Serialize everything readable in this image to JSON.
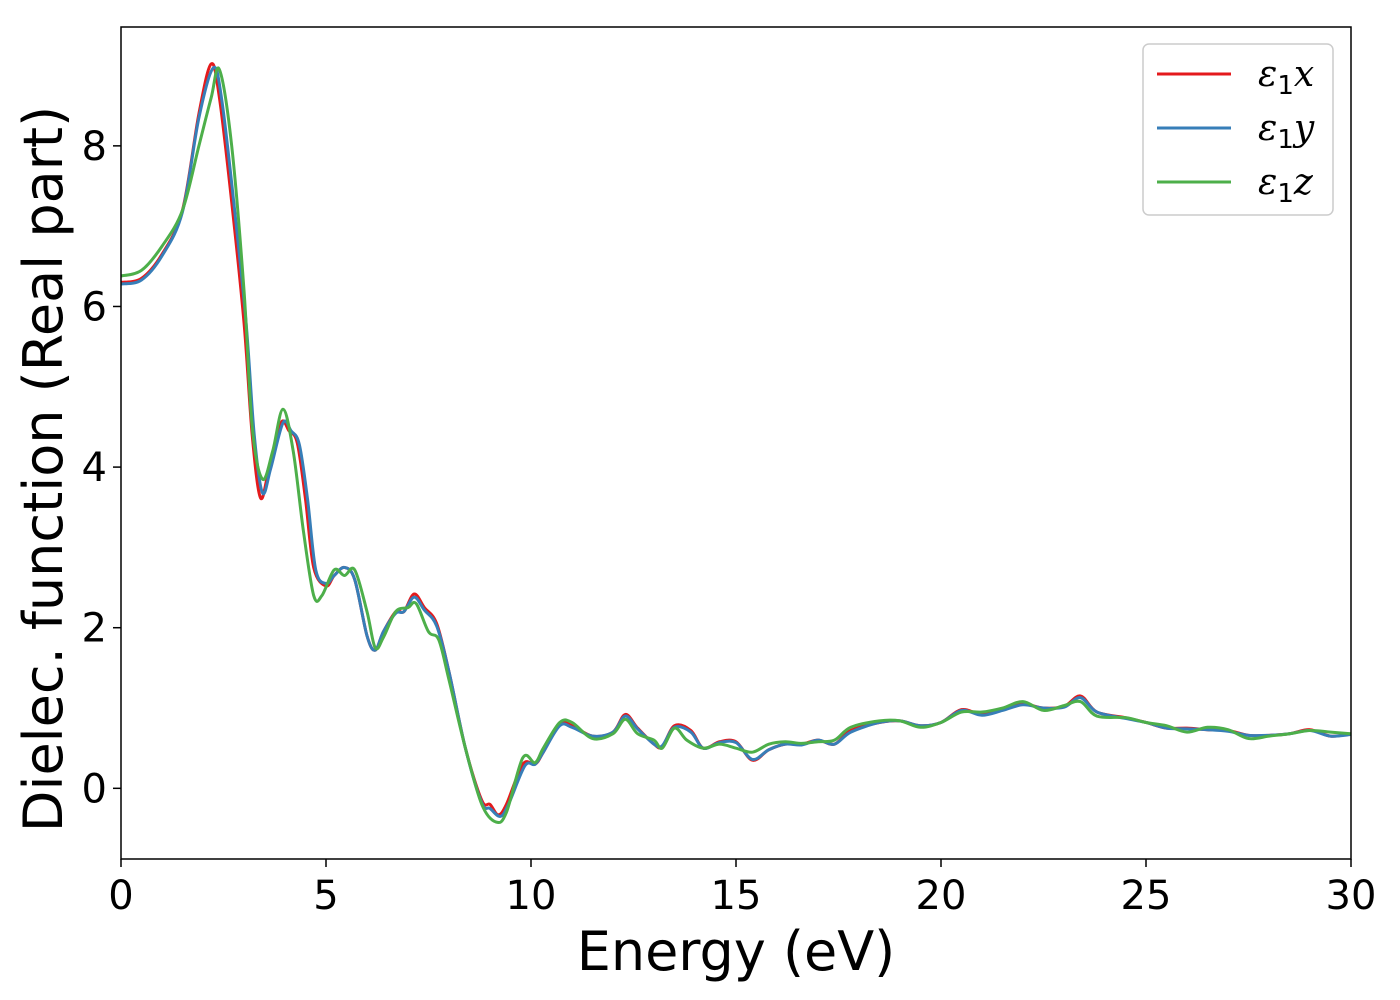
{
  "chart_data": {
    "type": "line",
    "title": "",
    "xlabel": "Energy (eV)",
    "ylabel": "Dielec. function (Real part)",
    "xlim": [
      0,
      30
    ],
    "ylim": [
      -0.88,
      9.48
    ],
    "xticks": [
      0,
      5,
      10,
      15,
      20,
      25,
      30
    ],
    "xtick_labels": [
      "0",
      "5",
      "10",
      "15",
      "20",
      "25",
      "30"
    ],
    "yticks": [
      0,
      2,
      4,
      6,
      8
    ],
    "ytick_labels": [
      "0",
      "2",
      "4",
      "6",
      "8"
    ],
    "grid": false,
    "legend_position": "top-right",
    "series": [
      {
        "name": "ε1x",
        "label_base": "ε",
        "label_sub": "1",
        "label_tail": "x",
        "color": "#e41a1c",
        "points": [
          [
            0,
            6.3
          ],
          [
            0.5,
            6.35
          ],
          [
            1.0,
            6.65
          ],
          [
            1.5,
            7.2
          ],
          [
            1.9,
            8.4
          ],
          [
            2.2,
            9.02
          ],
          [
            2.4,
            8.6
          ],
          [
            2.7,
            7.3
          ],
          [
            3.0,
            5.8
          ],
          [
            3.2,
            4.4
          ],
          [
            3.4,
            3.62
          ],
          [
            3.6,
            3.95
          ],
          [
            3.9,
            4.55
          ],
          [
            4.1,
            4.45
          ],
          [
            4.3,
            4.3
          ],
          [
            4.5,
            3.6
          ],
          [
            4.7,
            2.75
          ],
          [
            5.0,
            2.52
          ],
          [
            5.2,
            2.65
          ],
          [
            5.45,
            2.75
          ],
          [
            5.7,
            2.6
          ],
          [
            6.0,
            1.9
          ],
          [
            6.2,
            1.72
          ],
          [
            6.4,
            1.95
          ],
          [
            6.7,
            2.2
          ],
          [
            6.9,
            2.2
          ],
          [
            7.15,
            2.42
          ],
          [
            7.4,
            2.25
          ],
          [
            7.7,
            2.05
          ],
          [
            8.0,
            1.45
          ],
          [
            8.4,
            0.5
          ],
          [
            8.8,
            -0.15
          ],
          [
            9.0,
            -0.2
          ],
          [
            9.2,
            -0.33
          ],
          [
            9.4,
            -0.2
          ],
          [
            9.8,
            0.3
          ],
          [
            10.1,
            0.3
          ],
          [
            10.3,
            0.45
          ],
          [
            10.7,
            0.8
          ],
          [
            11.0,
            0.78
          ],
          [
            11.5,
            0.65
          ],
          [
            12.0,
            0.7
          ],
          [
            12.3,
            0.92
          ],
          [
            12.6,
            0.75
          ],
          [
            13.0,
            0.55
          ],
          [
            13.2,
            0.52
          ],
          [
            13.5,
            0.78
          ],
          [
            13.9,
            0.72
          ],
          [
            14.2,
            0.5
          ],
          [
            14.6,
            0.58
          ],
          [
            15.0,
            0.58
          ],
          [
            15.4,
            0.35
          ],
          [
            15.8,
            0.48
          ],
          [
            16.2,
            0.55
          ],
          [
            16.6,
            0.55
          ],
          [
            17.0,
            0.6
          ],
          [
            17.4,
            0.55
          ],
          [
            17.8,
            0.72
          ],
          [
            18.5,
            0.82
          ],
          [
            19.0,
            0.84
          ],
          [
            19.5,
            0.78
          ],
          [
            20.0,
            0.82
          ],
          [
            20.5,
            0.98
          ],
          [
            21.0,
            0.92
          ],
          [
            21.5,
            0.98
          ],
          [
            22.0,
            1.05
          ],
          [
            22.5,
            1.0
          ],
          [
            23.0,
            1.02
          ],
          [
            23.4,
            1.15
          ],
          [
            23.8,
            0.95
          ],
          [
            24.5,
            0.88
          ],
          [
            25.0,
            0.82
          ],
          [
            25.5,
            0.75
          ],
          [
            26.0,
            0.75
          ],
          [
            26.5,
            0.73
          ],
          [
            27.0,
            0.72
          ],
          [
            27.5,
            0.66
          ],
          [
            28.0,
            0.66
          ],
          [
            28.5,
            0.68
          ],
          [
            29.0,
            0.73
          ],
          [
            29.5,
            0.65
          ],
          [
            30.0,
            0.68
          ]
        ]
      },
      {
        "name": "ε1y",
        "label_base": "ε",
        "label_sub": "1",
        "label_tail": "y",
        "color": "#377eb8",
        "points": [
          [
            0,
            6.28
          ],
          [
            0.5,
            6.33
          ],
          [
            1.0,
            6.63
          ],
          [
            1.5,
            7.18
          ],
          [
            1.9,
            8.35
          ],
          [
            2.25,
            8.97
          ],
          [
            2.45,
            8.6
          ],
          [
            2.75,
            7.3
          ],
          [
            3.05,
            5.8
          ],
          [
            3.25,
            4.4
          ],
          [
            3.45,
            3.68
          ],
          [
            3.65,
            3.98
          ],
          [
            3.95,
            4.55
          ],
          [
            4.15,
            4.45
          ],
          [
            4.35,
            4.28
          ],
          [
            4.55,
            3.6
          ],
          [
            4.75,
            2.72
          ],
          [
            5.0,
            2.55
          ],
          [
            5.2,
            2.65
          ],
          [
            5.45,
            2.75
          ],
          [
            5.7,
            2.6
          ],
          [
            6.0,
            1.9
          ],
          [
            6.2,
            1.72
          ],
          [
            6.4,
            1.95
          ],
          [
            6.7,
            2.18
          ],
          [
            6.9,
            2.2
          ],
          [
            7.15,
            2.38
          ],
          [
            7.4,
            2.22
          ],
          [
            7.7,
            2.02
          ],
          [
            8.0,
            1.45
          ],
          [
            8.4,
            0.5
          ],
          [
            8.8,
            -0.18
          ],
          [
            9.0,
            -0.25
          ],
          [
            9.25,
            -0.35
          ],
          [
            9.45,
            -0.2
          ],
          [
            9.85,
            0.28
          ],
          [
            10.1,
            0.3
          ],
          [
            10.3,
            0.45
          ],
          [
            10.7,
            0.78
          ],
          [
            11.0,
            0.76
          ],
          [
            11.5,
            0.65
          ],
          [
            12.0,
            0.7
          ],
          [
            12.3,
            0.9
          ],
          [
            12.6,
            0.74
          ],
          [
            13.0,
            0.55
          ],
          [
            13.2,
            0.53
          ],
          [
            13.5,
            0.76
          ],
          [
            13.9,
            0.7
          ],
          [
            14.2,
            0.5
          ],
          [
            14.6,
            0.57
          ],
          [
            15.0,
            0.57
          ],
          [
            15.4,
            0.36
          ],
          [
            15.8,
            0.48
          ],
          [
            16.2,
            0.55
          ],
          [
            16.6,
            0.54
          ],
          [
            17.0,
            0.6
          ],
          [
            17.4,
            0.55
          ],
          [
            17.8,
            0.7
          ],
          [
            18.5,
            0.82
          ],
          [
            19.0,
            0.84
          ],
          [
            19.5,
            0.78
          ],
          [
            20.0,
            0.82
          ],
          [
            20.5,
            0.97
          ],
          [
            21.0,
            0.91
          ],
          [
            21.5,
            0.97
          ],
          [
            22.0,
            1.04
          ],
          [
            22.5,
            1.0
          ],
          [
            23.0,
            1.01
          ],
          [
            23.4,
            1.13
          ],
          [
            23.8,
            0.95
          ],
          [
            24.5,
            0.87
          ],
          [
            25.0,
            0.82
          ],
          [
            25.5,
            0.75
          ],
          [
            26.0,
            0.74
          ],
          [
            26.5,
            0.73
          ],
          [
            27.0,
            0.71
          ],
          [
            27.5,
            0.66
          ],
          [
            28.0,
            0.66
          ],
          [
            28.5,
            0.68
          ],
          [
            29.0,
            0.72
          ],
          [
            29.5,
            0.65
          ],
          [
            30.0,
            0.67
          ]
        ]
      },
      {
        "name": "ε1z",
        "label_base": "ε",
        "label_sub": "1",
        "label_tail": "z",
        "color": "#4daf4a",
        "points": [
          [
            0,
            6.38
          ],
          [
            0.5,
            6.45
          ],
          [
            1.0,
            6.75
          ],
          [
            1.5,
            7.2
          ],
          [
            1.9,
            8.0
          ],
          [
            2.2,
            8.6
          ],
          [
            2.4,
            8.95
          ],
          [
            2.7,
            8.0
          ],
          [
            3.0,
            6.2
          ],
          [
            3.2,
            4.5
          ],
          [
            3.45,
            3.85
          ],
          [
            3.7,
            4.2
          ],
          [
            3.95,
            4.72
          ],
          [
            4.2,
            4.2
          ],
          [
            4.45,
            3.2
          ],
          [
            4.7,
            2.4
          ],
          [
            4.9,
            2.4
          ],
          [
            5.2,
            2.72
          ],
          [
            5.45,
            2.65
          ],
          [
            5.7,
            2.72
          ],
          [
            6.0,
            2.2
          ],
          [
            6.2,
            1.75
          ],
          [
            6.4,
            1.88
          ],
          [
            6.7,
            2.2
          ],
          [
            7.0,
            2.25
          ],
          [
            7.2,
            2.3
          ],
          [
            7.5,
            1.95
          ],
          [
            7.75,
            1.85
          ],
          [
            8.0,
            1.35
          ],
          [
            8.4,
            0.5
          ],
          [
            8.8,
            -0.2
          ],
          [
            9.15,
            -0.42
          ],
          [
            9.4,
            -0.3
          ],
          [
            9.8,
            0.38
          ],
          [
            10.1,
            0.32
          ],
          [
            10.3,
            0.5
          ],
          [
            10.7,
            0.82
          ],
          [
            11.0,
            0.82
          ],
          [
            11.5,
            0.62
          ],
          [
            12.0,
            0.68
          ],
          [
            12.3,
            0.86
          ],
          [
            12.6,
            0.68
          ],
          [
            13.0,
            0.6
          ],
          [
            13.2,
            0.5
          ],
          [
            13.5,
            0.75
          ],
          [
            13.8,
            0.6
          ],
          [
            14.2,
            0.5
          ],
          [
            14.6,
            0.55
          ],
          [
            15.0,
            0.5
          ],
          [
            15.4,
            0.45
          ],
          [
            15.8,
            0.55
          ],
          [
            16.2,
            0.58
          ],
          [
            16.6,
            0.56
          ],
          [
            17.0,
            0.58
          ],
          [
            17.4,
            0.6
          ],
          [
            17.8,
            0.76
          ],
          [
            18.5,
            0.84
          ],
          [
            19.0,
            0.84
          ],
          [
            19.5,
            0.76
          ],
          [
            20.0,
            0.82
          ],
          [
            20.5,
            0.95
          ],
          [
            21.0,
            0.95
          ],
          [
            21.5,
            1.0
          ],
          [
            22.0,
            1.08
          ],
          [
            22.5,
            0.97
          ],
          [
            23.0,
            1.03
          ],
          [
            23.4,
            1.08
          ],
          [
            23.8,
            0.9
          ],
          [
            24.5,
            0.88
          ],
          [
            25.0,
            0.82
          ],
          [
            25.5,
            0.78
          ],
          [
            26.0,
            0.7
          ],
          [
            26.5,
            0.76
          ],
          [
            27.0,
            0.73
          ],
          [
            27.5,
            0.62
          ],
          [
            28.0,
            0.65
          ],
          [
            28.5,
            0.68
          ],
          [
            29.0,
            0.72
          ],
          [
            29.5,
            0.7
          ],
          [
            30.0,
            0.68
          ]
        ]
      }
    ]
  }
}
